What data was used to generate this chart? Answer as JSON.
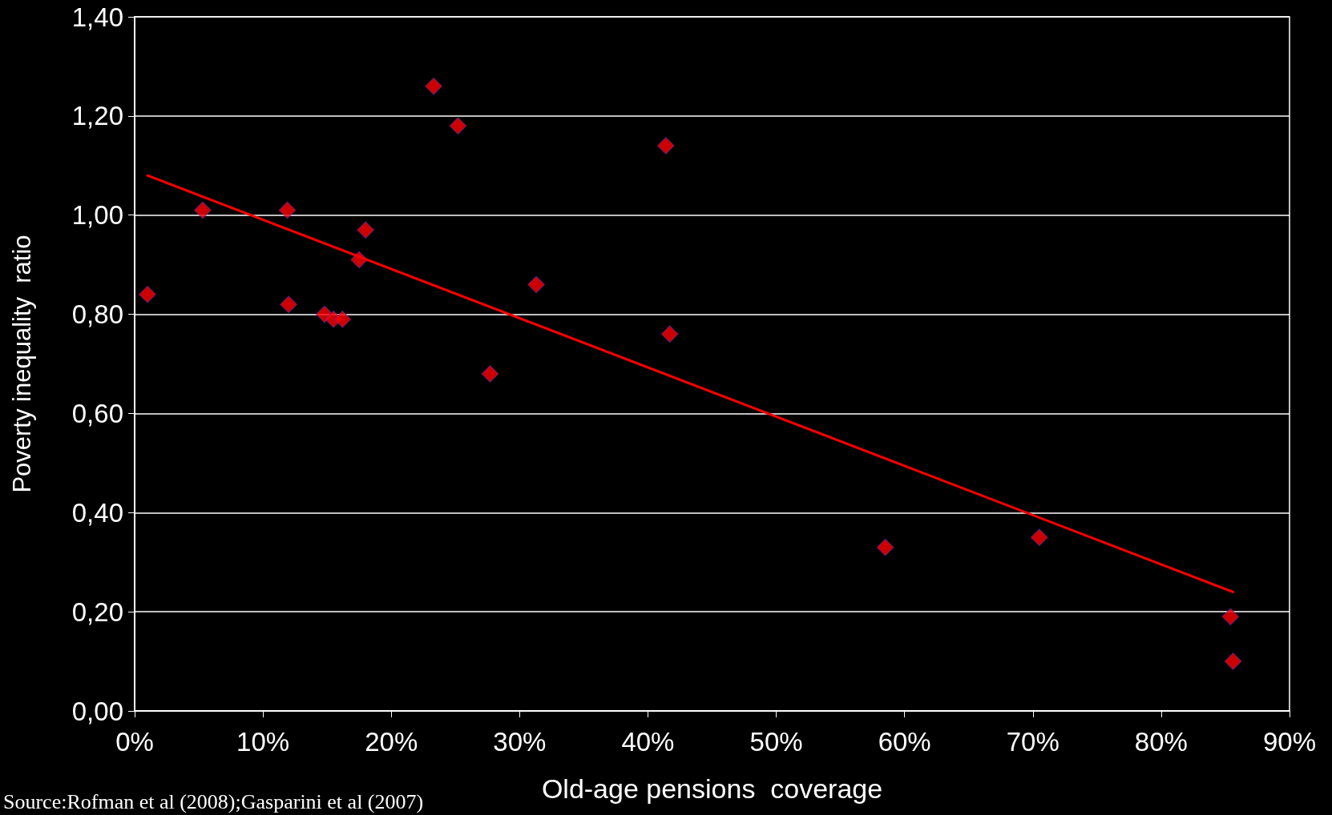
{
  "chart_data": {
    "type": "scatter",
    "xlabel": "Old-age pensions  coverage",
    "ylabel": "Poverty inequality  ratio",
    "annotations": [
      "Source:Rofman et al (2008);Gasparini et al (2007)"
    ],
    "xlim": [
      0,
      90
    ],
    "xticks": [
      {
        "value": 0,
        "label": "0%"
      },
      {
        "value": 10,
        "label": "10%"
      },
      {
        "value": 20,
        "label": "20%"
      },
      {
        "value": 30,
        "label": "30%"
      },
      {
        "value": 40,
        "label": "40%"
      },
      {
        "value": 50,
        "label": "50%"
      },
      {
        "value": 60,
        "label": "60%"
      },
      {
        "value": 70,
        "label": "70%"
      },
      {
        "value": 80,
        "label": "80%"
      },
      {
        "value": 90,
        "label": "90%"
      }
    ],
    "ylim": [
      0,
      1.4
    ],
    "yticks": [
      {
        "value": 0,
        "label": "0,00"
      },
      {
        "value": 0.2,
        "label": "0,20"
      },
      {
        "value": 0.4,
        "label": "0,40"
      },
      {
        "value": 0.6,
        "label": "0,60"
      },
      {
        "value": 0.8,
        "label": "0,80"
      },
      {
        "value": 1.0,
        "label": "1,00"
      },
      {
        "value": 1.2,
        "label": "1,20"
      },
      {
        "value": 1.4,
        "label": "1,40"
      }
    ],
    "grid": "y",
    "marker": "diamond",
    "series": [
      {
        "color": "#ff0000",
        "x": [
          1.0,
          5.3,
          11.9,
          12.0,
          14.8,
          15.5,
          16.2,
          17.5,
          18.0,
          23.3,
          25.2,
          27.7,
          31.3,
          41.4,
          41.7,
          58.5,
          70.5,
          85.4,
          85.6
        ],
        "values": [
          0.84,
          1.01,
          1.01,
          0.82,
          0.8,
          0.79,
          0.79,
          0.91,
          0.97,
          1.26,
          1.18,
          0.68,
          0.86,
          1.14,
          0.76,
          0.33,
          0.35,
          0.19,
          0.1
        ]
      },
      {
        "type": "line",
        "color": "#ff0000",
        "x": [
          1.0,
          85.6
        ],
        "values": [
          1.08,
          0.24
        ],
        "marker": "none",
        "line_style": "solid"
      }
    ]
  }
}
